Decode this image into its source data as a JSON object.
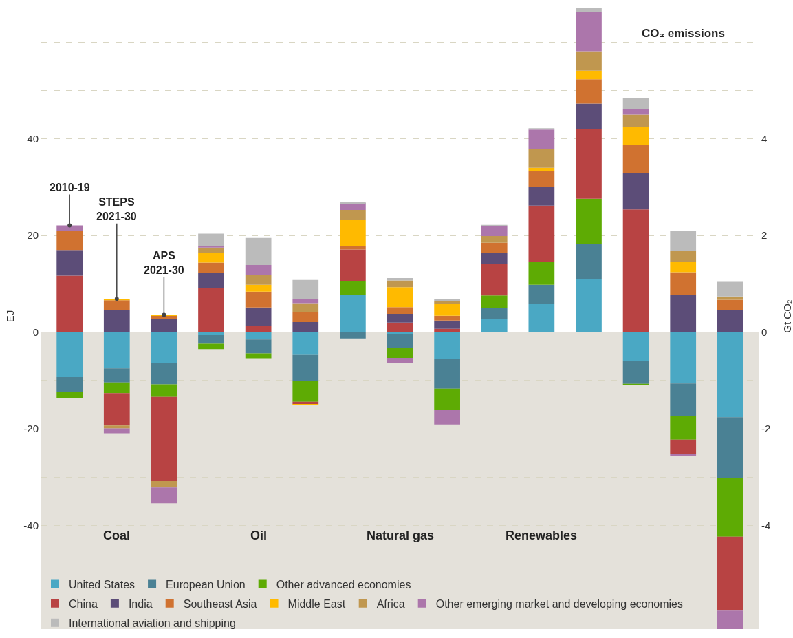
{
  "chart_data": {
    "type": "bar",
    "stacked": true,
    "categories": [
      null,
      "Coal",
      null,
      null,
      "Oil",
      null,
      null,
      "Natural gas",
      null,
      null,
      "Renewables",
      null,
      null,
      null,
      null
    ],
    "ylabel": "EJ",
    "y2label": "Gt CO₂",
    "ylim": [
      -61.4,
      68
    ],
    "yticks": [
      {
        "value": 60,
        "label": null
      },
      {
        "value": 50,
        "label": null
      },
      40,
      {
        "value": 30,
        "label": null
      },
      20,
      {
        "value": 10,
        "label": null
      },
      0,
      {
        "value": -10,
        "label": null
      },
      -20,
      {
        "value": -30,
        "label": null
      },
      -40
    ],
    "y2lim": [
      -6.14,
      6.8
    ],
    "y2ticks": [
      4,
      2,
      0,
      -2,
      -4
    ],
    "grid": "y",
    "legend": "bottom left",
    "bands": [
      {
        "axis": "y",
        "from": -61.4,
        "to": 0,
        "color": "#e4e1da"
      }
    ],
    "annotations": [
      {
        "text": "2010-19",
        "y": 22.1
      },
      {
        "text": "STEPS\n2021-30",
        "y": 6.9
      },
      {
        "text": "APS\n2021-30",
        "y": 3.6
      },
      "CO₂ emissions"
    ],
    "series": [
      {
        "name": "United States",
        "color": "#4aa8c4",
        "values": [
          -9.3,
          -7.5,
          -6.3,
          -0.6,
          -1.5,
          -4.7,
          7.7,
          -0.4,
          -5.6,
          2.8,
          5.9,
          10.9,
          null,
          null,
          null
        ]
      },
      {
        "name": "European Union",
        "color": "#4a8194",
        "values": [
          -3.0,
          -2.9,
          -4.5,
          -1.8,
          -2.9,
          -5.4,
          -1.3,
          -2.8,
          -6.1,
          2.2,
          3.9,
          7.4,
          null,
          null,
          null
        ]
      },
      {
        "name": "Other advanced economies",
        "color": "#5eab04",
        "values": [
          -1.3,
          -2.2,
          -2.6,
          -1.1,
          -1.0,
          -4.3,
          2.8,
          -2.1,
          -4.3,
          2.6,
          4.7,
          9.3,
          null,
          null,
          null
        ]
      },
      {
        "name": "China",
        "color": "#b84343",
        "values": [
          11.7,
          -6.7,
          -17.4,
          9.1,
          1.3,
          -0.5,
          6.6,
          2.0,
          0.7,
          6.6,
          11.7,
          14.5,
          null,
          null,
          null
        ]
      },
      {
        "name": "India",
        "color": "#5c4d78",
        "values": [
          5.3,
          4.5,
          2.7,
          3.1,
          3.8,
          2.1,
          null,
          1.8,
          1.7,
          2.2,
          3.9,
          5.2,
          null,
          null,
          null
        ]
      },
      {
        "name": "Southeast Asia",
        "color": "#d07230",
        "values": [
          3.9,
          2.1,
          0.7,
          2.2,
          3.3,
          2.1,
          0.8,
          1.4,
          1.0,
          2.1,
          3.2,
          5.0,
          null,
          null,
          null
        ]
      },
      {
        "name": "Middle East",
        "color": "#ffba00",
        "values": [
          null,
          0.3,
          0.2,
          2.0,
          1.4,
          -0.2,
          5.4,
          4.1,
          2.5,
          null,
          0.7,
          1.8,
          null,
          null,
          null
        ]
      },
      {
        "name": "Africa",
        "color": "#c0974f",
        "values": [
          null,
          -0.6,
          -1.3,
          1.1,
          2.1,
          1.8,
          2.0,
          1.4,
          0.6,
          1.4,
          3.9,
          4.0,
          null,
          null,
          null
        ]
      },
      {
        "name": "Other emerging market and developing economies",
        "color": "#ac76ab",
        "values": [
          1.2,
          -1.0,
          -3.3,
          0.3,
          2.0,
          0.8,
          1.4,
          -1.1,
          -3.1,
          2.0,
          4.0,
          8.2,
          null,
          null,
          null
        ]
      },
      {
        "name": "International aviation and shipping",
        "color": "#bbbbbb",
        "values": [
          null,
          null,
          null,
          2.6,
          5.6,
          4.0,
          0.2,
          0.5,
          0.3,
          0.3,
          0.3,
          0.8,
          null,
          null,
          null
        ]
      },
      {
        "color": "#4aa8c4",
        "axis": "y2",
        "values": [
          null,
          null,
          null,
          null,
          null,
          null,
          null,
          null,
          null,
          null,
          null,
          null,
          -0.6,
          -1.06,
          -1.76
        ]
      },
      {
        "color": "#4a8194",
        "axis": "y2",
        "values": [
          null,
          null,
          null,
          null,
          null,
          null,
          null,
          null,
          null,
          null,
          null,
          null,
          -0.47,
          -0.67,
          -1.26
        ]
      },
      {
        "color": "#5eab04",
        "axis": "y2",
        "values": [
          null,
          null,
          null,
          null,
          null,
          null,
          null,
          null,
          null,
          null,
          null,
          null,
          -0.03,
          -0.49,
          -1.21
        ]
      },
      {
        "color": "#b84343",
        "axis": "y2",
        "values": [
          null,
          null,
          null,
          null,
          null,
          null,
          null,
          null,
          null,
          null,
          null,
          null,
          2.54,
          -0.3,
          -1.53
        ]
      },
      {
        "color": "#5c4d78",
        "axis": "y2",
        "values": [
          null,
          null,
          null,
          null,
          null,
          null,
          null,
          null,
          null,
          null,
          null,
          null,
          0.75,
          0.78,
          0.45
        ]
      },
      {
        "color": "#d07230",
        "axis": "y2",
        "values": [
          null,
          null,
          null,
          null,
          null,
          null,
          null,
          null,
          null,
          null,
          null,
          null,
          0.59,
          0.46,
          0.22
        ]
      },
      {
        "color": "#ffba00",
        "axis": "y2",
        "values": [
          null,
          null,
          null,
          null,
          null,
          null,
          null,
          null,
          null,
          null,
          null,
          null,
          0.37,
          0.21,
          null
        ]
      },
      {
        "color": "#c0974f",
        "axis": "y2",
        "values": [
          null,
          null,
          null,
          null,
          null,
          null,
          null,
          null,
          null,
          null,
          null,
          null,
          0.25,
          0.23,
          0.07
        ]
      },
      {
        "color": "#ac76ab",
        "axis": "y2",
        "values": [
          null,
          null,
          null,
          null,
          null,
          null,
          null,
          null,
          null,
          null,
          null,
          null,
          0.12,
          -0.04,
          -0.38
        ]
      },
      {
        "color": "#bbbbbb",
        "axis": "y2",
        "values": [
          null,
          null,
          null,
          null,
          null,
          null,
          null,
          null,
          null,
          null,
          null,
          null,
          0.23,
          0.42,
          0.3
        ]
      }
    ]
  }
}
